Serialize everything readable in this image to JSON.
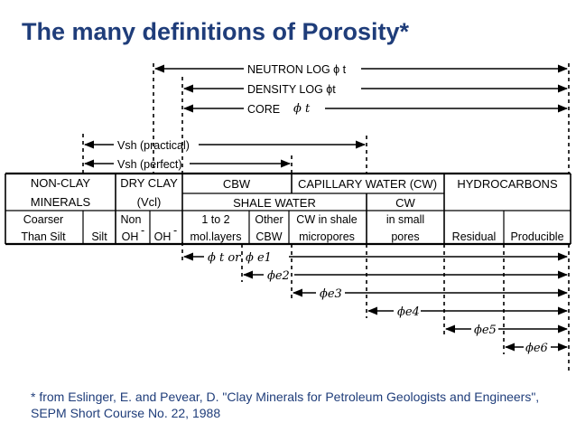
{
  "title": "The many definitions of Porosity*",
  "logs": {
    "neutron": "NEUTRON LOG ϕ t",
    "density": "DENSITY LOG ϕt",
    "core": "CORE",
    "core_phi": "ϕ t"
  },
  "vsh": {
    "practical": "Vsh (practical)",
    "perfect": "Vsh (perfect)"
  },
  "table": {
    "nonclay_1": "NON-CLAY",
    "nonclay_2": "MINERALS",
    "dryclay_1": "DRY CLAY",
    "dryclay_2": "(Vcl)",
    "cbw": "CBW",
    "cw": "CAPILLARY WATER (CW)",
    "hydrocarbons": "HYDROCARBONS",
    "shale_water": "SHALE WATER",
    "cw_short": "CW",
    "coarser_1": "Coarser",
    "coarser_2": "Than Silt",
    "silt": "Silt",
    "non": "Non",
    "oh_minus_1": "OH",
    "oh_minus_2": "OH",
    "one_to_two": "1 to 2",
    "mol_layers": "mol.layers",
    "other": "Other",
    "cbw2": "CBW",
    "cw_in_shale": "CW in shale",
    "micropores": "micropores",
    "in_small": "in small",
    "pores": "pores",
    "residual": "Residual",
    "producible": "Producible"
  },
  "phi_labels": {
    "t_or": "ϕ t or",
    "e1": "ϕ e1",
    "e2": "ϕe2",
    "e3": "ϕe3",
    "e4": "ϕe4",
    "e5": "ϕe5",
    "e6": "ϕe6"
  },
  "footnote": "* from Eslinger, E. and Pevear, D. \"Clay Minerals for Petroleum Geologists and Engineers\", SEPM Short Course No. 22, 1988"
}
